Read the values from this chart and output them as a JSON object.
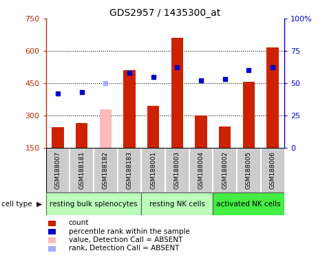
{
  "title": "GDS2957 / 1435300_at",
  "samples": [
    "GSM188007",
    "GSM188181",
    "GSM188182",
    "GSM188183",
    "GSM188001",
    "GSM188003",
    "GSM188004",
    "GSM188002",
    "GSM188005",
    "GSM188006"
  ],
  "counts": [
    245,
    265,
    330,
    510,
    345,
    660,
    300,
    250,
    455,
    615
  ],
  "percentiles": [
    42,
    43,
    50,
    58,
    55,
    62,
    52,
    53,
    60,
    62
  ],
  "absent_flags": [
    false,
    false,
    true,
    false,
    false,
    false,
    false,
    false,
    false,
    false
  ],
  "cell_groups": [
    {
      "label": "resting bulk splenocytes",
      "start": 0,
      "end": 4
    },
    {
      "label": "resting NK cells",
      "start": 4,
      "end": 7
    },
    {
      "label": "activated NK cells",
      "start": 7,
      "end": 10
    }
  ],
  "group_colors": [
    "#bbffbb",
    "#bbffbb",
    "#44ee44"
  ],
  "ylim_left": [
    150,
    750
  ],
  "ylim_right": [
    0,
    100
  ],
  "yticks_left": [
    150,
    300,
    450,
    600,
    750
  ],
  "yticks_right": [
    0,
    25,
    50,
    75,
    100
  ],
  "bar_color_present": "#cc2200",
  "bar_color_absent": "#ffbbbb",
  "dot_color_present": "#0000cc",
  "dot_color_absent": "#aaaaff",
  "bg_color_samples": "#cccccc",
  "grid_color": "#000000",
  "count_base": 150,
  "legend_items": [
    {
      "color": "#cc2200",
      "label": "count"
    },
    {
      "color": "#0000cc",
      "label": "percentile rank within the sample"
    },
    {
      "color": "#ffbbbb",
      "label": "value, Detection Call = ABSENT"
    },
    {
      "color": "#aaaaff",
      "label": "rank, Detection Call = ABSENT"
    }
  ]
}
